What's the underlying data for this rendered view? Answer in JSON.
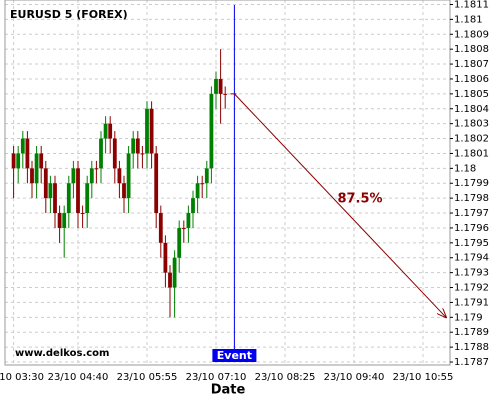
{
  "chart_data": {
    "type": "candlestick",
    "title": "EURUSD 5 (FOREX)",
    "watermark": "www.delkos.com",
    "x_label": "Date",
    "categories": [
      "23/10 03:30",
      null,
      null,
      null,
      null,
      null,
      null,
      null,
      null,
      null,
      null,
      null,
      null,
      null,
      "23/10 04:40",
      null,
      null,
      null,
      null,
      null,
      null,
      null,
      null,
      null,
      null,
      null,
      null,
      null,
      null,
      "23/10 05:55",
      null,
      null,
      null,
      null,
      null,
      null,
      null,
      null,
      null,
      null,
      null,
      null,
      null,
      null,
      "23/10 07:10",
      null,
      null,
      null,
      null,
      null,
      null,
      null,
      null,
      null,
      null,
      null,
      null,
      null,
      null,
      "23/10 08:25",
      null,
      null,
      null,
      null,
      null,
      null,
      null,
      null,
      null,
      null,
      null,
      null,
      null,
      null,
      "23/10 09:40",
      null,
      null,
      null,
      null,
      null,
      null,
      null,
      null,
      null,
      null,
      null,
      null,
      null,
      null,
      "23/10 10:55",
      null,
      null,
      null,
      null,
      null
    ],
    "open": [
      1.1801,
      1.18,
      1.1801,
      1.1802,
      1.18,
      1.1799,
      1.1801,
      1.18,
      1.1798,
      1.1799,
      1.1797,
      1.1796,
      1.1797,
      1.1799,
      1.18,
      1.1797,
      1.1797,
      1.1799,
      1.18,
      1.18,
      1.1802,
      1.1803,
      1.1802,
      1.18,
      1.1799,
      1.1798,
      1.1801,
      1.1802,
      1.1801,
      1.1801,
      1.1804,
      1.1801,
      1.1797,
      1.1795,
      1.1793,
      1.1792,
      1.1794,
      1.1796,
      1.1796,
      1.1797,
      1.1798,
      1.1799,
      1.1799,
      1.18,
      1.1805,
      1.1806,
      1.1805,
      null,
      null,
      null,
      null,
      null,
      null,
      null,
      null,
      null,
      null,
      null,
      null,
      null,
      null,
      null,
      null,
      null,
      null,
      null,
      null,
      null,
      null,
      null,
      null,
      null,
      null,
      null,
      null,
      null,
      null,
      null,
      null,
      null,
      null,
      null,
      null,
      null,
      null,
      null,
      null,
      null,
      null,
      null,
      null,
      null,
      null,
      null,
      null
    ],
    "high": [
      1.18015,
      1.18015,
      1.18025,
      1.18025,
      1.18005,
      1.18015,
      1.18015,
      1.18005,
      1.17995,
      1.17995,
      1.17975,
      1.17975,
      1.17995,
      1.18005,
      1.18005,
      1.17975,
      1.17995,
      1.18005,
      1.18005,
      1.18025,
      1.18035,
      1.18035,
      1.18025,
      1.18005,
      1.17995,
      1.18015,
      1.18025,
      1.18025,
      1.18015,
      1.18045,
      1.18045,
      1.18015,
      1.17975,
      1.17955,
      1.17935,
      1.17945,
      1.17965,
      1.17965,
      1.17975,
      1.17985,
      1.17995,
      1.17995,
      1.18005,
      1.18055,
      1.18065,
      1.1808,
      1.18055,
      null,
      null,
      null,
      null,
      null,
      null,
      null,
      null,
      null,
      null,
      null,
      null,
      null,
      null,
      null,
      null,
      null,
      null,
      null,
      null,
      null,
      null,
      null,
      null,
      null,
      null,
      null,
      null,
      null,
      null,
      null,
      null,
      null,
      null,
      null,
      null,
      null,
      null,
      null,
      null,
      null,
      null,
      null,
      null,
      null,
      null,
      null,
      null
    ],
    "low": [
      1.1798,
      1.1799,
      1.18,
      1.1799,
      1.1798,
      1.1798,
      1.1799,
      1.1797,
      1.1797,
      1.1796,
      1.1795,
      1.1794,
      1.1796,
      1.1798,
      1.1796,
      1.1796,
      1.1796,
      1.1798,
      1.1799,
      1.1799,
      1.1801,
      1.1801,
      1.1799,
      1.1798,
      1.1797,
      1.1797,
      1.18,
      1.18,
      1.18,
      1.18,
      1.18,
      1.1796,
      1.1794,
      1.1792,
      1.179,
      1.179,
      1.1793,
      1.1795,
      1.1795,
      1.1796,
      1.1797,
      1.1798,
      1.1798,
      1.1799,
      1.1804,
      1.1803,
      1.1804,
      null,
      null,
      null,
      null,
      null,
      null,
      null,
      null,
      null,
      null,
      null,
      null,
      null,
      null,
      null,
      null,
      null,
      null,
      null,
      null,
      null,
      null,
      null,
      null,
      null,
      null,
      null,
      null,
      null,
      null,
      null,
      null,
      null,
      null,
      null,
      null,
      null,
      null,
      null,
      null,
      null,
      null,
      null,
      null,
      null,
      null,
      null,
      null
    ],
    "close": [
      1.18,
      1.1801,
      1.1802,
      1.18,
      1.1799,
      1.1801,
      1.18,
      1.1798,
      1.1799,
      1.1797,
      1.1796,
      1.1797,
      1.1799,
      1.18,
      1.1797,
      1.1797,
      1.1799,
      1.18,
      1.18,
      1.1802,
      1.1803,
      1.1802,
      1.18,
      1.1799,
      1.1798,
      1.1801,
      1.1802,
      1.1801,
      1.1801,
      1.1804,
      1.1801,
      1.1797,
      1.1795,
      1.1793,
      1.1792,
      1.1794,
      1.1796,
      1.1796,
      1.1797,
      1.1798,
      1.1799,
      1.1799,
      1.18,
      1.1805,
      1.1806,
      1.1805,
      1.1805,
      null,
      null,
      null,
      null,
      null,
      null,
      null,
      null,
      null,
      null,
      null,
      null,
      null,
      null,
      null,
      null,
      null,
      null,
      null,
      null,
      null,
      null,
      null,
      null,
      null,
      null,
      null,
      null,
      null,
      null,
      null,
      null,
      null,
      null,
      null,
      null,
      null,
      null,
      null,
      null,
      null,
      null,
      null,
      null,
      null,
      null,
      null,
      null
    ],
    "up_color": "#008000",
    "down_color": "#8b0000",
    "ylim": [
      1.17868,
      1.18113
    ],
    "yticks": [
      1.1787,
      1.1788,
      1.1789,
      1.179,
      1.1791,
      1.1792,
      1.1793,
      1.1794,
      1.1795,
      1.1796,
      1.1797,
      1.1798,
      1.1799,
      1.18,
      1.1801,
      1.1802,
      1.1803,
      1.1804,
      1.1805,
      1.1806,
      1.1807,
      1.1808,
      1.1809,
      1.181,
      1.1811
    ],
    "grid": true,
    "event": {
      "label": "Event",
      "x": 48,
      "color": "#0000ee"
    },
    "prediction": {
      "label": "87.5%",
      "from": {
        "x": 48,
        "y": 1.1805
      },
      "to": {
        "x": 94,
        "y": 1.179
      },
      "color": "#8b0000"
    }
  }
}
